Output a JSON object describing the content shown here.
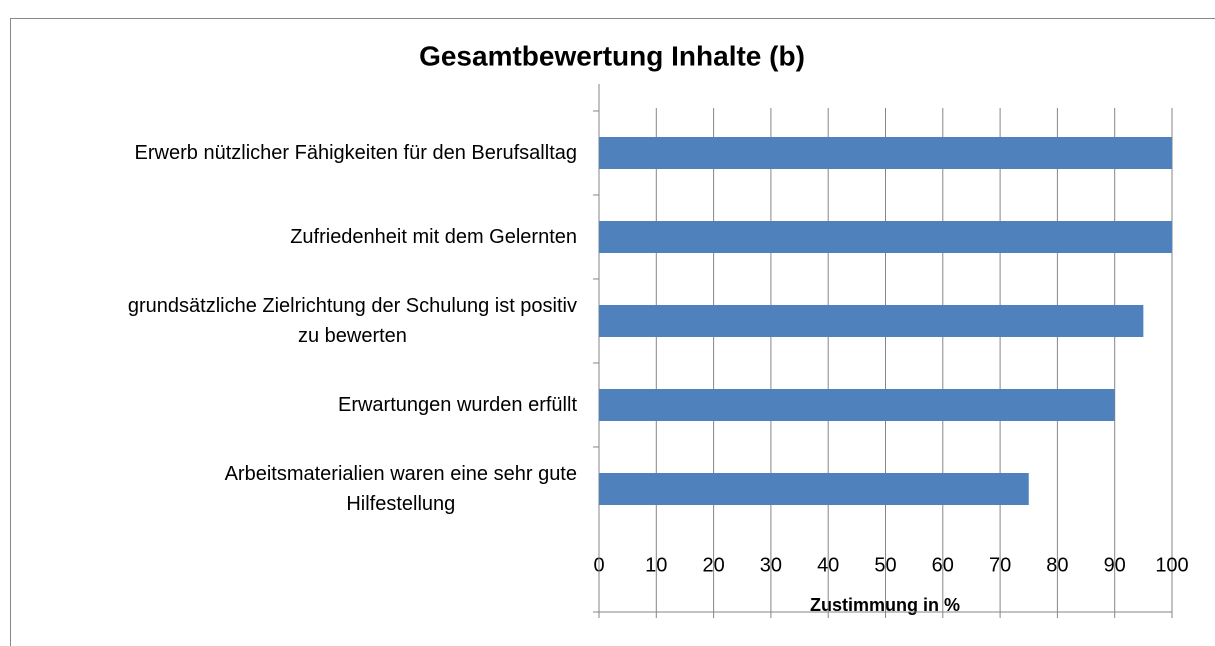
{
  "chart_data": {
    "type": "hbar",
    "title": "Gesamtbewertung Inhalte (b)",
    "x_label": "Zustimmung in %",
    "categories": [
      "Erwerb nützlicher Fähigkeiten für den Berufsalltag",
      "Zufriedenheit mit dem Gelernten",
      "grundsätzliche Zielrichtung der Schulung ist positiv\nzu bewerten",
      "Erwartungen wurden erfüllt",
      "Arbeitsmaterialien waren eine sehr gute\nHilfestellung"
    ],
    "values": [
      100,
      100,
      95,
      90,
      75
    ],
    "color": "#4f81bd",
    "xlim": [
      0,
      100
    ],
    "xticks": [
      0,
      10,
      20,
      30,
      40,
      50,
      60,
      70,
      80,
      90,
      100
    ],
    "grid": true
  }
}
